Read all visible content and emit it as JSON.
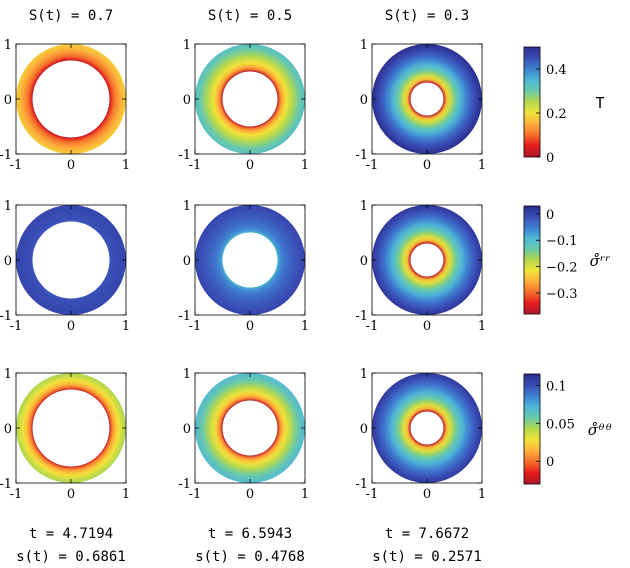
{
  "chart_data": {
    "type": "heatmap",
    "description_free": true,
    "column_headers": [
      "S(t) = 0.7",
      "S(t) = 0.5",
      "S(t) = 0.3"
    ],
    "axis": {
      "xlim": [
        -1,
        1
      ],
      "ylim": [
        -1,
        1
      ],
      "xticks": [
        -1,
        0,
        1
      ],
      "yticks": [
        -1,
        0,
        1
      ],
      "xtick_labels": [
        "-1",
        "0",
        "1"
      ],
      "ytick_labels": [
        "-1",
        "0",
        "1"
      ]
    },
    "rows": [
      {
        "field_label": "T",
        "colorbar": {
          "range": [
            0,
            0.5
          ],
          "ticks": [
            0,
            0.2,
            0.4
          ],
          "tick_labels": [
            "0",
            "0.2",
            "0.4"
          ]
        },
        "panels": [
          {
            "inner_radius": 0.7,
            "outer_radius": 1,
            "value_inner": 0.0,
            "value_outer": 0.18
          },
          {
            "inner_radius": 0.5,
            "outer_radius": 1,
            "value_inner": 0.0,
            "value_outer": 0.33
          },
          {
            "inner_radius": 0.3,
            "outer_radius": 1,
            "value_inner": 0.0,
            "value_outer": 0.5
          }
        ]
      },
      {
        "field_label": "σ̊ʳʳ",
        "colorbar": {
          "range": [
            -0.38,
            0.03
          ],
          "ticks": [
            0,
            -0.1,
            -0.2,
            -0.3
          ],
          "tick_labels": [
            "0",
            "−0.1",
            "−0.2",
            "−0.3"
          ]
        },
        "panels": [
          {
            "inner_radius": 0.7,
            "outer_radius": 1,
            "value_inner": -0.02,
            "value_outer": 0.0
          },
          {
            "inner_radius": 0.5,
            "outer_radius": 1,
            "value_inner": -0.1,
            "value_outer": 0.0
          },
          {
            "inner_radius": 0.3,
            "outer_radius": 1,
            "value_inner": -0.38,
            "value_outer": 0.02
          }
        ]
      },
      {
        "field_label": "σ̊ᶿᶿ",
        "colorbar": {
          "range": [
            -0.03,
            0.115
          ],
          "ticks": [
            0.1,
            0.05,
            0
          ],
          "tick_labels": [
            "0.1",
            "0.05",
            "0"
          ]
        },
        "panels": [
          {
            "inner_radius": 0.7,
            "outer_radius": 1,
            "value_inner": -0.03,
            "value_outer": 0.045
          },
          {
            "inner_radius": 0.5,
            "outer_radius": 1,
            "value_inner": -0.03,
            "value_outer": 0.07
          },
          {
            "inner_radius": 0.3,
            "outer_radius": 1,
            "value_inner": -0.03,
            "value_outer": 0.11
          }
        ]
      }
    ],
    "footer": [
      {
        "t": "t = 4.7194",
        "s": "s(t) = 0.6861"
      },
      {
        "t": "t = 6.5943",
        "s": "s(t) = 0.4768"
      },
      {
        "t": "t = 7.6672",
        "s": "s(t) = 0.2571"
      }
    ],
    "colormap": [
      "#b2182b",
      "#e41a1c",
      "#f46d2b",
      "#fdae3a",
      "#f2e33a",
      "#b6d84b",
      "#69c9a8",
      "#4fb8d8",
      "#3f7fd0",
      "#3a4fb8",
      "#2a2f8e"
    ]
  }
}
